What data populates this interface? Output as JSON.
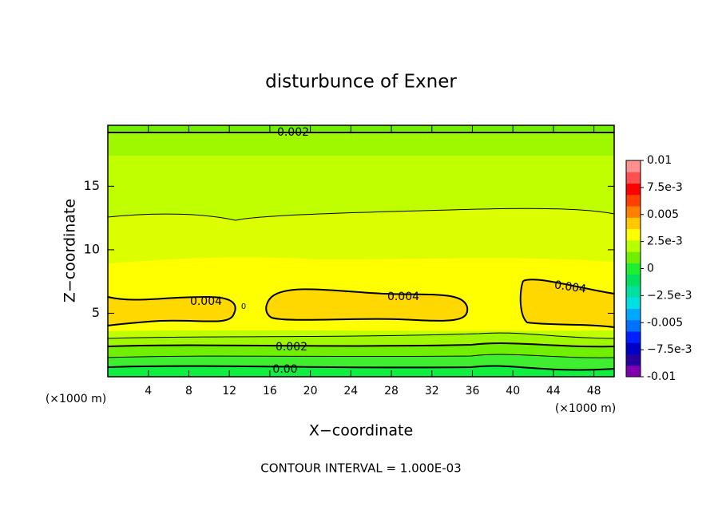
{
  "chart_data": {
    "type": "contour",
    "title": "disturbunce of Exner",
    "xlabel": "X−coordinate",
    "ylabel": "Z−coordinate",
    "x_unit_label": "(×1000 m)",
    "footer": "CONTOUR INTERVAL = 1.000E-03",
    "xlim": [
      0,
      50
    ],
    "ylim": [
      0,
      19.8
    ],
    "xticks": [
      4,
      8,
      12,
      16,
      20,
      24,
      28,
      32,
      36,
      40,
      44,
      48
    ],
    "yticks": [
      5,
      10,
      15
    ],
    "contour_labels": [
      "0.002",
      "0.004",
      "0",
      "0.004",
      "0.004",
      "0.002",
      "0.00"
    ],
    "colorbar": {
      "lim": [
        -0.01,
        0.01
      ],
      "colors": [
        "#8000b0",
        "#2800a0",
        "#0000c8",
        "#0020ff",
        "#0070ff",
        "#00a8ff",
        "#00e0e0",
        "#00e0a0",
        "#00e060",
        "#20ee30",
        "#70f000",
        "#b8ff00",
        "#ffff00",
        "#ffc800",
        "#ff8000",
        "#ff4000",
        "#ff0000",
        "#ff5050",
        "#ff9090"
      ],
      "ticks": [
        0.01,
        {
          "value": 0.0075,
          "label": "7.5e-3"
        },
        0.005,
        {
          "value": 0.0025,
          "label": "2.5e-3"
        },
        0,
        {
          "value": -0.0025,
          "label": "−2.5e-3"
        },
        -0.005,
        {
          "value": -0.0075,
          "label": "−7.5e-3"
        },
        -0.01
      ]
    }
  }
}
